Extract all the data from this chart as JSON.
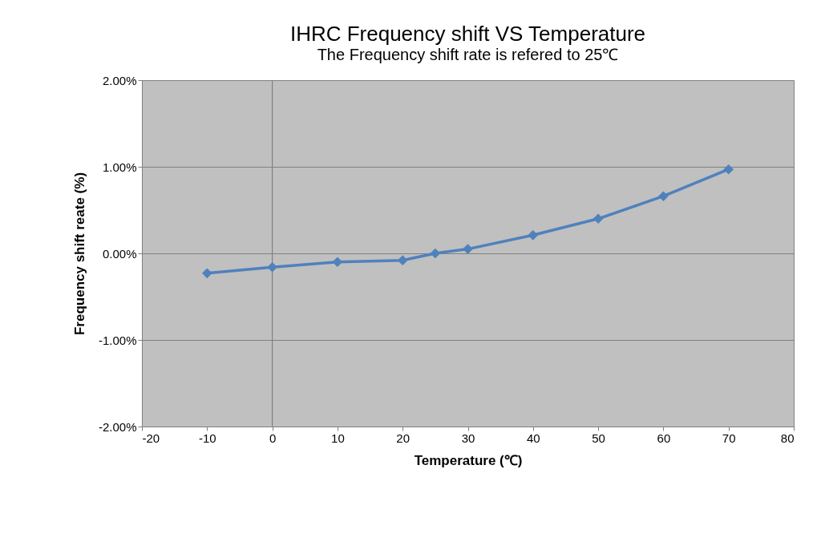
{
  "chart_data": {
    "type": "line",
    "title": "IHRC Frequency shift VS Temperature",
    "subtitle": "The Frequency shift rate is refered to 25℃",
    "xlabel": "Temperature (℃)",
    "ylabel": "Frequency shift reate (%)",
    "x": [
      -10,
      0,
      10,
      20,
      25,
      30,
      40,
      50,
      60,
      70
    ],
    "series": [
      {
        "color": "#4f81bd",
        "values": [
          -0.23,
          -0.16,
          -0.1,
          -0.08,
          0.0,
          0.05,
          0.21,
          0.4,
          0.66,
          0.97
        ]
      }
    ],
    "xlim": [
      -20,
      80
    ],
    "xticks": [
      -20,
      -10,
      0,
      10,
      20,
      30,
      40,
      50,
      60,
      70,
      80
    ],
    "ylim": [
      -2,
      2
    ],
    "yticks": [
      {
        "value": -2,
        "label": "-2.00%"
      },
      {
        "value": -1,
        "label": "-1.00%"
      },
      {
        "value": 0,
        "label": "0.00%"
      },
      {
        "value": 1,
        "label": "1.00%"
      },
      {
        "value": 2,
        "label": "2.00%"
      }
    ],
    "ref_lines": [
      {
        "axis": "x",
        "value": 0,
        "color": "#808080"
      }
    ],
    "grid": "y",
    "marker": "diamond",
    "line_style": "solid"
  }
}
